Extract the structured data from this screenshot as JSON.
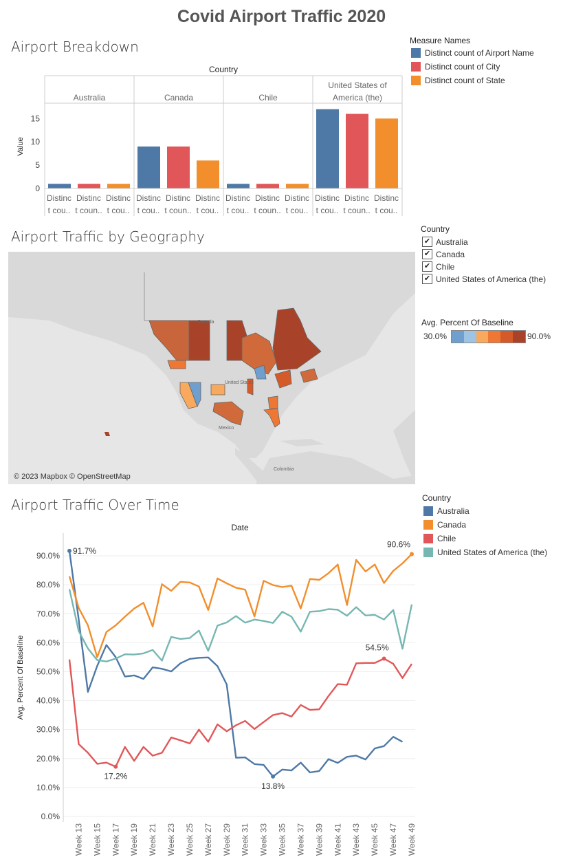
{
  "title": "Covid Airport Traffic 2020",
  "sections": {
    "breakdown": "Airport Breakdown",
    "geography": "Airport Traffic by Geography",
    "time": "Airport Traffic Over Time"
  },
  "colors": {
    "airport": "#4e79a7",
    "city": "#e15759",
    "state": "#f28e2b",
    "australia": "#4e79a7",
    "canada": "#f28e2b",
    "chile": "#e15759",
    "usa": "#76b7b2"
  },
  "measure_legend": {
    "title": "Measure Names",
    "items": [
      "Distinct count of Airport Name",
      "Distinct count of City",
      "Distinct count of State"
    ]
  },
  "geo_legend": {
    "title": "Country",
    "items": [
      "Australia",
      "Canada",
      "Chile",
      "United States of America (the)"
    ],
    "check": "✔"
  },
  "color_legend": {
    "title": "Avg. Percent Of Baseline",
    "min_label": "30.0%",
    "max_label": "90.0%",
    "steps": [
      "#6f9fcf",
      "#9ec3e3",
      "#f8a95e",
      "#ee7833",
      "#d45a29",
      "#a8432a"
    ]
  },
  "map": {
    "credit": "© 2023 Mapbox © OpenStreetMap",
    "labels": [
      "Canada",
      "United States",
      "Mexico",
      "Colombia"
    ]
  },
  "time_legend": {
    "title": "Country",
    "items": [
      "Australia",
      "Canada",
      "Chile",
      "United States of America (the)"
    ]
  },
  "chart_data": [
    {
      "type": "bar",
      "header": "Country",
      "panes": [
        "Australia",
        "Canada",
        "Chile",
        "United States of America (the)"
      ],
      "measures": [
        "Distinct count of Airport Name",
        "Distinct count of City",
        "Distinct count of State"
      ],
      "tick_label": [
        "Distinc",
        "t cou.."
      ],
      "tick_labels_per_pane": [
        [
          "Distinc t cou..",
          "Distinc t coun..",
          "Distinc t cou.."
        ],
        [
          "Distinc t cou..",
          "Distinc t coun..",
          "Distinc t cou.."
        ],
        [
          "Distinc t cou..",
          "Distinc t coun..",
          "Distinc t cou.."
        ],
        [
          "Distinc t cou..",
          "Distinc t coun..",
          "Distinc t cou.."
        ]
      ],
      "series": [
        {
          "name": "Distinct count of Airport Name",
          "values": [
            1,
            9,
            1,
            17
          ]
        },
        {
          "name": "Distinct count of City",
          "values": [
            1,
            9,
            1,
            16
          ]
        },
        {
          "name": "Distinct count of State",
          "values": [
            1,
            6,
            1,
            15
          ]
        }
      ],
      "ylabel": "Value",
      "yticks": [
        0,
        5,
        10,
        15
      ],
      "ylim": [
        0,
        18
      ]
    },
    {
      "type": "line",
      "header": "Date",
      "ylabel": "Avg. Percent Of Baseline",
      "ylim": [
        0,
        95
      ],
      "yticks": [
        "0.0%",
        "10.0%",
        "20.0%",
        "30.0%",
        "40.0%",
        "50.0%",
        "60.0%",
        "70.0%",
        "80.0%",
        "90.0%"
      ],
      "x": [
        12,
        13,
        14,
        15,
        16,
        17,
        18,
        19,
        20,
        21,
        22,
        23,
        24,
        25,
        26,
        27,
        28,
        29,
        30,
        31,
        32,
        33,
        34,
        35,
        36,
        37,
        38,
        39,
        40,
        41,
        42,
        43,
        44,
        45,
        46,
        47,
        48,
        49
      ],
      "xticks": [
        "Week 13",
        "Week 15",
        "Week 17",
        "Week 19",
        "Week 21",
        "Week 23",
        "Week 25",
        "Week 27",
        "Week 29",
        "Week 31",
        "Week 33",
        "Week 35",
        "Week 37",
        "Week 39",
        "Week 41",
        "Week 43",
        "Week 45",
        "Week 47",
        "Week 49"
      ],
      "xtick_values": [
        13,
        15,
        17,
        19,
        21,
        23,
        25,
        27,
        29,
        31,
        33,
        35,
        37,
        39,
        41,
        43,
        45,
        47,
        49
      ],
      "series": [
        {
          "name": "Australia",
          "values": [
            91.7,
            68.0,
            43.0,
            52.0,
            59.2,
            55.0,
            48.3,
            48.7,
            47.5,
            51.5,
            51.0,
            50.1,
            52.9,
            54.4,
            54.8,
            54.9,
            51.9,
            45.6,
            20.3,
            20.4,
            18.1,
            17.8,
            13.8,
            16.2,
            15.9,
            18.6,
            15.2,
            15.7,
            19.8,
            18.5,
            20.6,
            21.0,
            19.7,
            23.5,
            24.3,
            27.5,
            25.8,
            null
          ]
        },
        {
          "name": "Canada",
          "values": [
            82.9,
            72.0,
            66.0,
            55.0,
            63.7,
            66.0,
            69.0,
            71.8,
            73.8,
            65.6,
            80.2,
            77.9,
            81.0,
            80.8,
            79.4,
            71.3,
            82.2,
            80.5,
            79.0,
            78.3,
            69.1,
            81.4,
            79.9,
            79.2,
            79.7,
            71.8,
            82.0,
            81.7,
            84.0,
            87.0,
            73.0,
            88.6,
            84.6,
            87.0,
            80.6,
            84.8,
            87.4,
            90.6
          ]
        },
        {
          "name": "Chile",
          "values": [
            54.2,
            25.0,
            22.0,
            18.2,
            18.6,
            17.2,
            24.0,
            19.2,
            24.0,
            21.0,
            22.0,
            27.3,
            26.3,
            25.2,
            30.0,
            25.8,
            31.8,
            29.4,
            31.5,
            33.0,
            30.2,
            32.6,
            35.0,
            35.7,
            34.5,
            38.5,
            36.8,
            37.0,
            41.6,
            45.7,
            45.5,
            52.9,
            53.0,
            53.0,
            54.5,
            52.7,
            47.8,
            52.7
          ]
        },
        {
          "name": "United States of America (the)",
          "values": [
            78.5,
            64.0,
            58.0,
            54.0,
            53.5,
            54.5,
            56.0,
            55.9,
            56.3,
            57.5,
            53.8,
            62.0,
            61.3,
            61.6,
            64.2,
            57.2,
            65.9,
            67.0,
            69.2,
            66.9,
            68.0,
            67.5,
            66.8,
            70.7,
            69.0,
            63.8,
            70.7,
            70.9,
            71.6,
            71.4,
            69.3,
            72.3,
            69.4,
            69.6,
            68.0,
            71.3,
            57.9,
            73.2
          ]
        }
      ],
      "annotations": [
        {
          "text": "91.7%",
          "series": "Australia",
          "x": 12,
          "y": 91.7
        },
        {
          "text": "90.6%",
          "series": "Canada",
          "x": 49,
          "y": 90.6
        },
        {
          "text": "54.5%",
          "series": "Chile",
          "x": 46,
          "y": 54.5
        },
        {
          "text": "17.2%",
          "series": "Chile",
          "x": 17,
          "y": 17.2
        },
        {
          "text": "13.8%",
          "series": "Australia",
          "x": 34,
          "y": 13.8
        }
      ]
    }
  ]
}
